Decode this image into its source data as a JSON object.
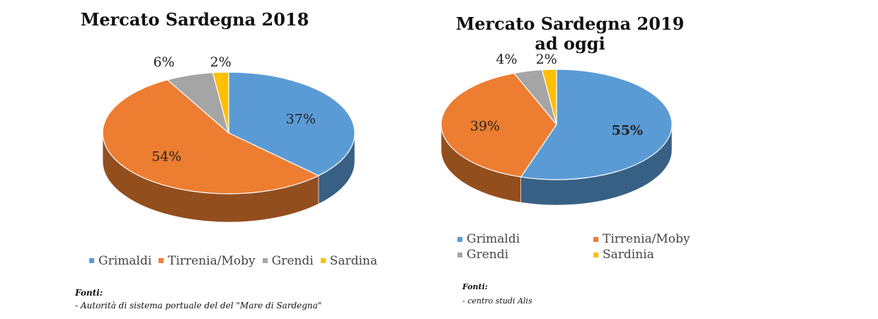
{
  "colors": {
    "Grimaldi": "#5b9bd5",
    "Tirrenia/Moby": "#ed7d31",
    "Grendi": "#a5a5a5",
    "Sardina": "#ffc000",
    "Sardinia": "#ffc000"
  },
  "chart_data": [
    {
      "type": "pie",
      "title": "Mercato Sardegna 2018",
      "slices": [
        {
          "label": "Grimaldi",
          "value": 37,
          "display": "37%"
        },
        {
          "label": "Tirrenia/Moby",
          "value": 54,
          "display": "54%"
        },
        {
          "label": "Grendi",
          "value": 6,
          "display": "6%"
        },
        {
          "label": "Sardina",
          "value": 2,
          "display": "2%"
        }
      ],
      "legend": [
        "Grimaldi",
        "Tirrenia/Moby",
        "Grendi",
        "Sardina"
      ],
      "legend_position": "bottom",
      "sources_heading": "Fonti:",
      "sources": [
        "- Autorità di sistema portuale del del \"Mare di Sardegna\""
      ]
    },
    {
      "type": "pie",
      "title": "Mercato Sardegna 2019",
      "subtitle": "ad oggi",
      "slices": [
        {
          "label": "Grimaldi",
          "value": 55,
          "display": "55%"
        },
        {
          "label": "Tirrenia/Moby",
          "value": 39,
          "display": "39%"
        },
        {
          "label": "Grendi",
          "value": 4,
          "display": "4%"
        },
        {
          "label": "Sardinia",
          "value": 2,
          "display": "2%"
        }
      ],
      "legend": [
        "Grimaldi",
        "Tirrenia/Moby",
        "Grendi",
        "Sardinia"
      ],
      "legend_position": "bottom",
      "sources_heading": "Fonti:",
      "sources": [
        "- centro studi Alis"
      ]
    }
  ]
}
